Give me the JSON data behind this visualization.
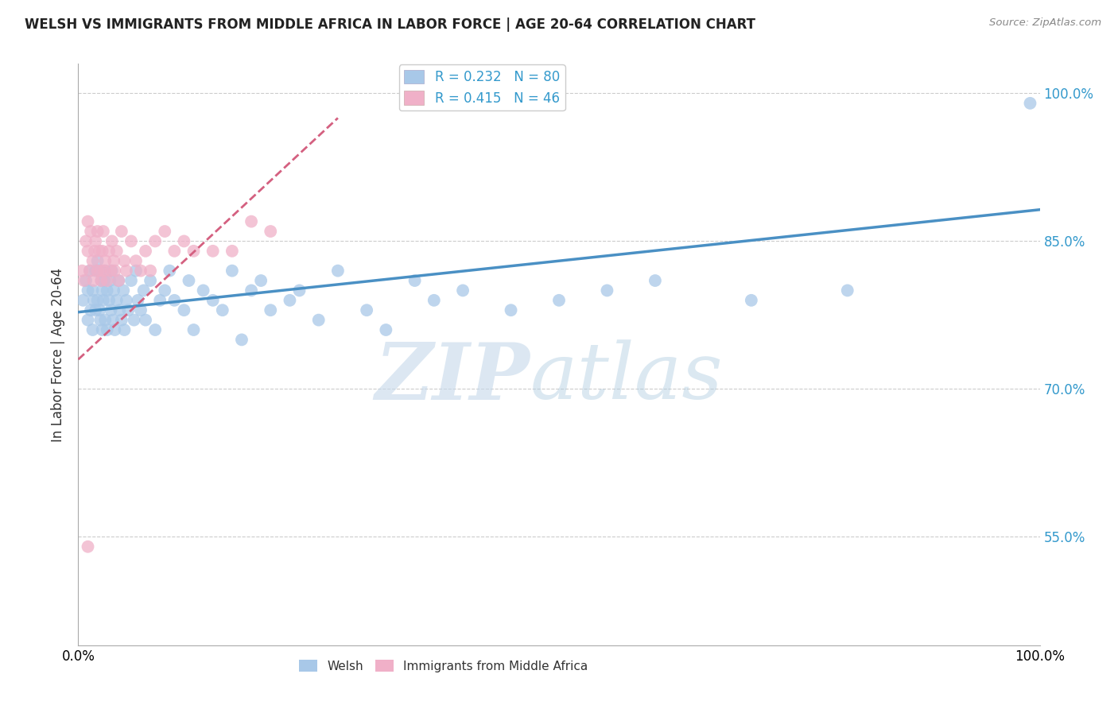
{
  "title": "WELSH VS IMMIGRANTS FROM MIDDLE AFRICA IN LABOR FORCE | AGE 20-64 CORRELATION CHART",
  "source": "Source: ZipAtlas.com",
  "ylabel": "In Labor Force | Age 20-64",
  "legend_label1": "Welsh",
  "legend_label2": "Immigrants from Middle Africa",
  "R1": 0.232,
  "N1": 80,
  "R2": 0.415,
  "N2": 46,
  "color1": "#a8c8e8",
  "color2": "#f0b0c8",
  "trendline1_color": "#4a90c4",
  "trendline2_color": "#d46080",
  "xlim": [
    0.0,
    1.0
  ],
  "ylim": [
    0.44,
    1.03
  ],
  "yticks": [
    0.55,
    0.7,
    0.85,
    1.0
  ],
  "ytick_labels": [
    "55.0%",
    "70.0%",
    "85.0%",
    "100.0%"
  ],
  "xtick_labels": [
    "0.0%",
    "100.0%"
  ],
  "xticks": [
    0.0,
    1.0
  ],
  "watermark_zip": "ZIP",
  "watermark_atlas": "atlas",
  "watermark_color_zip": "#c0d4e8",
  "watermark_color_atlas": "#b0cce0",
  "background_color": "#ffffff",
  "welsh_x": [
    0.005,
    0.008,
    0.01,
    0.01,
    0.012,
    0.013,
    0.015,
    0.015,
    0.016,
    0.018,
    0.018,
    0.02,
    0.02,
    0.022,
    0.022,
    0.023,
    0.024,
    0.025,
    0.025,
    0.026,
    0.027,
    0.028,
    0.028,
    0.03,
    0.03,
    0.032,
    0.033,
    0.034,
    0.035,
    0.036,
    0.037,
    0.038,
    0.04,
    0.042,
    0.043,
    0.045,
    0.047,
    0.048,
    0.05,
    0.052,
    0.055,
    0.058,
    0.06,
    0.062,
    0.065,
    0.068,
    0.07,
    0.075,
    0.08,
    0.085,
    0.09,
    0.095,
    0.1,
    0.11,
    0.115,
    0.12,
    0.13,
    0.14,
    0.15,
    0.16,
    0.17,
    0.18,
    0.19,
    0.2,
    0.22,
    0.23,
    0.25,
    0.27,
    0.3,
    0.32,
    0.35,
    0.37,
    0.4,
    0.45,
    0.5,
    0.55,
    0.6,
    0.7,
    0.8,
    0.99
  ],
  "welsh_y": [
    0.79,
    0.81,
    0.8,
    0.77,
    0.82,
    0.78,
    0.8,
    0.76,
    0.79,
    0.82,
    0.78,
    0.83,
    0.79,
    0.82,
    0.78,
    0.77,
    0.81,
    0.8,
    0.76,
    0.79,
    0.81,
    0.77,
    0.82,
    0.8,
    0.76,
    0.79,
    0.81,
    0.78,
    0.82,
    0.77,
    0.8,
    0.76,
    0.79,
    0.81,
    0.78,
    0.77,
    0.8,
    0.76,
    0.79,
    0.78,
    0.81,
    0.77,
    0.82,
    0.79,
    0.78,
    0.8,
    0.77,
    0.81,
    0.76,
    0.79,
    0.8,
    0.82,
    0.79,
    0.78,
    0.81,
    0.76,
    0.8,
    0.79,
    0.78,
    0.82,
    0.75,
    0.8,
    0.81,
    0.78,
    0.79,
    0.8,
    0.77,
    0.82,
    0.78,
    0.76,
    0.81,
    0.79,
    0.8,
    0.78,
    0.79,
    0.8,
    0.81,
    0.79,
    0.8,
    0.99
  ],
  "immigrant_x": [
    0.004,
    0.006,
    0.008,
    0.01,
    0.01,
    0.012,
    0.013,
    0.015,
    0.016,
    0.017,
    0.018,
    0.02,
    0.02,
    0.022,
    0.023,
    0.024,
    0.025,
    0.026,
    0.027,
    0.028,
    0.03,
    0.032,
    0.034,
    0.035,
    0.037,
    0.038,
    0.04,
    0.042,
    0.045,
    0.048,
    0.05,
    0.055,
    0.06,
    0.065,
    0.07,
    0.075,
    0.08,
    0.09,
    0.1,
    0.11,
    0.12,
    0.14,
    0.16,
    0.18,
    0.2,
    0.01
  ],
  "immigrant_y": [
    0.82,
    0.81,
    0.85,
    0.84,
    0.87,
    0.82,
    0.86,
    0.83,
    0.81,
    0.84,
    0.85,
    0.82,
    0.86,
    0.84,
    0.82,
    0.81,
    0.84,
    0.86,
    0.82,
    0.83,
    0.81,
    0.84,
    0.82,
    0.85,
    0.83,
    0.82,
    0.84,
    0.81,
    0.86,
    0.83,
    0.82,
    0.85,
    0.83,
    0.82,
    0.84,
    0.82,
    0.85,
    0.86,
    0.84,
    0.85,
    0.84,
    0.84,
    0.84,
    0.87,
    0.86,
    0.54
  ]
}
